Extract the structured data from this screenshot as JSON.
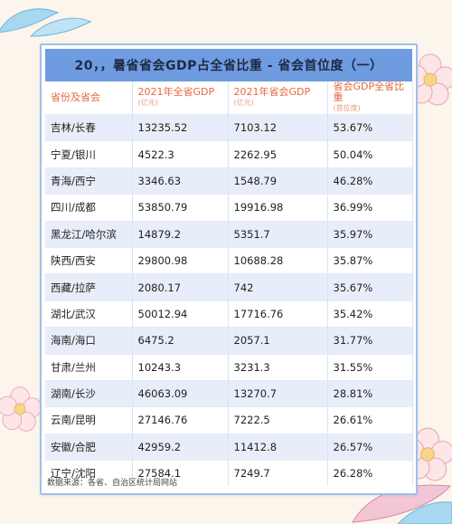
{
  "title": "20，，暑省省会GDP占全省比重 - 省会首位度（一）",
  "headers": {
    "col1": "省份及省会",
    "col2": "2021年全省GDP",
    "col2_sub": "(亿元)",
    "col3": "2021年省会GDP",
    "col3_sub": "(亿元)",
    "col4": "省会GDP全省比重",
    "col4_sub": "(首位度)"
  },
  "rows": [
    {
      "name": "吉林/长春",
      "prov": "13235.52",
      "cap": "7103.12",
      "pct": "53.67%"
    },
    {
      "name": "宁夏/银川",
      "prov": "4522.3",
      "cap": "2262.95",
      "pct": "50.04%"
    },
    {
      "name": "青海/西宁",
      "prov": "3346.63",
      "cap": "1548.79",
      "pct": "46.28%"
    },
    {
      "name": "四川/成都",
      "prov": "53850.79",
      "cap": "19916.98",
      "pct": "36.99%"
    },
    {
      "name": "黑龙江/哈尔滨",
      "prov": "14879.2",
      "cap": "5351.7",
      "pct": "35.97%"
    },
    {
      "name": "陕西/西安",
      "prov": "29800.98",
      "cap": "10688.28",
      "pct": "35.87%"
    },
    {
      "name": "西藏/拉萨",
      "prov": "2080.17",
      "cap": "742",
      "pct": "35.67%"
    },
    {
      "name": "湖北/武汉",
      "prov": "50012.94",
      "cap": "17716.76",
      "pct": "35.42%"
    },
    {
      "name": "海南/海口",
      "prov": "6475.2",
      "cap": "2057.1",
      "pct": "31.77%"
    },
    {
      "name": "甘肃/兰州",
      "prov": "10243.3",
      "cap": "3231.3",
      "pct": "31.55%"
    },
    {
      "name": "湖南/长沙",
      "prov": "46063.09",
      "cap": "13270.7",
      "pct": "28.81%"
    },
    {
      "name": "云南/昆明",
      "prov": "27146.76",
      "cap": "7222.5",
      "pct": "26.61%"
    },
    {
      "name": "安徽/合肥",
      "prov": "42959.2",
      "cap": "11412.8",
      "pct": "26.57%"
    },
    {
      "name": "辽宁/沈阳",
      "prov": "27584.1",
      "cap": "7249.7",
      "pct": "26.28%"
    }
  ],
  "source": "数据来源：各省、自治区统计局网站",
  "colors": {
    "title_bar": "#6f9be0",
    "header_text": "#e46a3a",
    "row_alt": "#e8eef9",
    "border": "#9ec0ef"
  }
}
